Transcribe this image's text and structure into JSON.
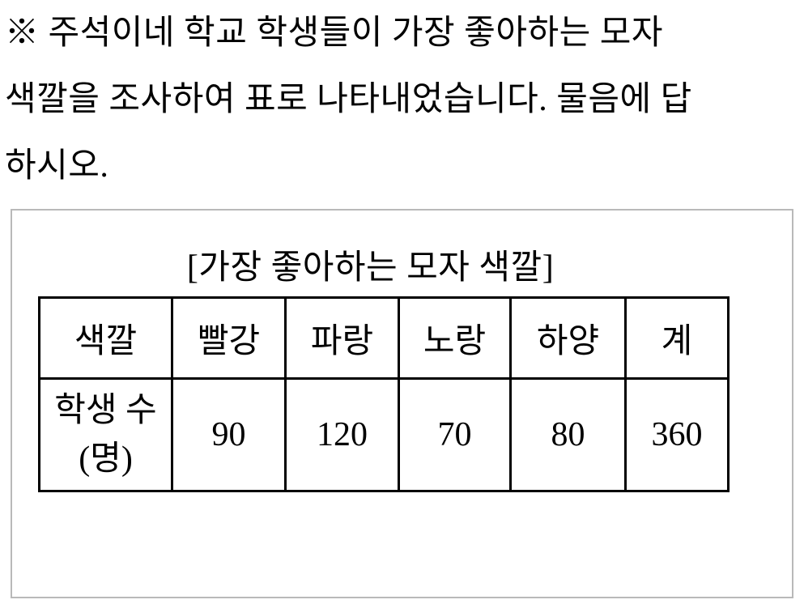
{
  "problem": {
    "lines": [
      "※ 주석이네 학교 학생들이 가장 좋아하는 모자",
      "색깔을 조사하여 표로 나타내었습니다. 물음에 답",
      "하시오."
    ]
  },
  "figure": {
    "title": "[가장 좋아하는 모자 색깔]",
    "table": {
      "headers": [
        "색깔",
        "빨강",
        "파랑",
        "노랑",
        "하양",
        "계"
      ],
      "row_label": {
        "line1": "학생 수",
        "line2": "(명)"
      },
      "values": [
        "90",
        "120",
        "70",
        "80",
        "360"
      ]
    }
  },
  "chart_data": {
    "type": "table",
    "title": "[가장 좋아하는 모자 색깔]",
    "categories": [
      "빨강",
      "파랑",
      "노랑",
      "하양"
    ],
    "values": [
      90,
      120,
      70,
      80
    ],
    "total": 360,
    "row_label": "학생 수 (명)",
    "column_header": "색깔"
  },
  "colors": {
    "text": "#000000",
    "table_border": "#000000",
    "box_border": "#b9b9b9",
    "background": "#ffffff"
  }
}
